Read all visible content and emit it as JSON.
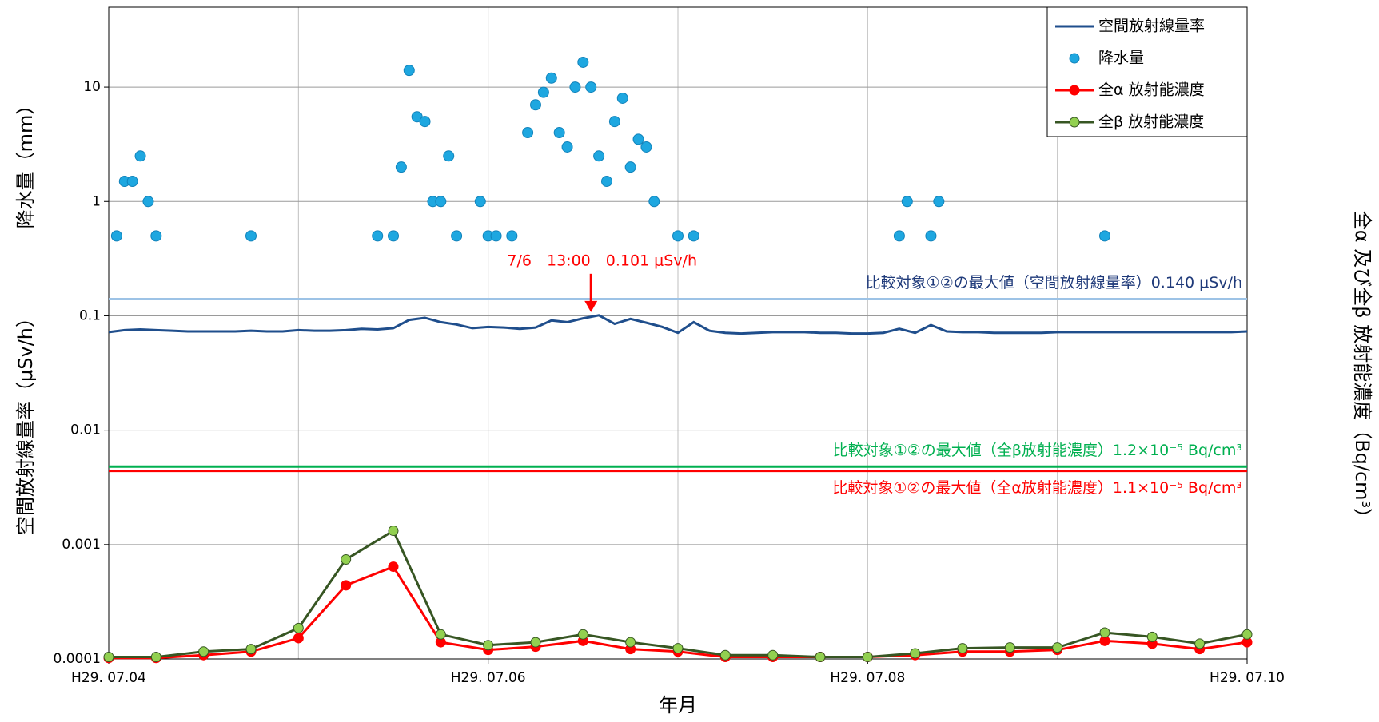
{
  "chart_data": {
    "type": "line",
    "x_label": "年月",
    "y_labels": [
      "降水量（mm）",
      "空間放射線量率（μSv/h）"
    ],
    "y2_label": "全α 及び全β 放射能濃度（Bq/cm³）",
    "xlim": [
      0,
      144
    ],
    "xticks": [
      {
        "value": 0,
        "label": "H29. 07.04"
      },
      {
        "value": 48,
        "label": "H29. 07.06"
      },
      {
        "value": 96,
        "label": "H29. 07.08"
      },
      {
        "value": 144,
        "label": "H29. 07.10"
      }
    ],
    "xgrid": [
      24,
      48,
      72,
      96,
      120
    ],
    "ylim": [
      0.0001,
      50
    ],
    "yticks": [
      0.0001,
      0.001,
      0.01,
      0.1,
      1,
      10
    ],
    "y2lim": [
      2.5e-07,
      0.125
    ],
    "log_scale": true,
    "grid": true,
    "legend": "top-right",
    "series": [
      {
        "name": "空間放射線量率",
        "type": "line",
        "color": "#1f4e8c",
        "x": [
          0,
          2,
          4,
          6,
          8,
          10,
          12,
          14,
          16,
          18,
          20,
          22,
          24,
          26,
          28,
          30,
          32,
          34,
          36,
          38,
          40,
          42,
          44,
          46,
          48,
          50,
          52,
          54,
          56,
          58,
          60,
          62,
          64,
          66,
          68,
          70,
          72,
          74,
          76,
          78,
          80,
          82,
          84,
          86,
          88,
          90,
          92,
          94,
          96,
          98,
          100,
          102,
          104,
          106,
          108,
          110,
          112,
          114,
          116,
          118,
          120,
          122,
          124,
          126,
          128,
          130,
          132,
          134,
          136,
          138,
          140,
          142,
          144
        ],
        "values": [
          0.072,
          0.075,
          0.076,
          0.075,
          0.074,
          0.073,
          0.073,
          0.073,
          0.073,
          0.074,
          0.073,
          0.073,
          0.075,
          0.074,
          0.074,
          0.075,
          0.077,
          0.076,
          0.078,
          0.092,
          0.096,
          0.088,
          0.084,
          0.078,
          0.08,
          0.079,
          0.077,
          0.079,
          0.091,
          0.088,
          0.095,
          0.101,
          0.085,
          0.094,
          0.087,
          0.08,
          0.071,
          0.088,
          0.074,
          0.071,
          0.07,
          0.071,
          0.072,
          0.072,
          0.072,
          0.071,
          0.071,
          0.07,
          0.07,
          0.071,
          0.077,
          0.071,
          0.083,
          0.073,
          0.072,
          0.072,
          0.071,
          0.071,
          0.071,
          0.071,
          0.072,
          0.072,
          0.072,
          0.072,
          0.072,
          0.072,
          0.072,
          0.072,
          0.072,
          0.072,
          0.072,
          0.072,
          0.073
        ]
      },
      {
        "name": "降水量",
        "type": "scatter",
        "color": "#1ea7e0",
        "x": [
          1,
          2,
          3,
          4,
          5,
          6,
          18,
          34,
          36,
          37,
          38,
          39,
          40,
          41,
          42,
          43,
          44,
          47,
          48,
          49,
          51,
          53,
          54,
          55,
          56,
          57,
          58,
          59,
          60,
          61,
          62,
          63,
          64,
          65,
          66,
          67,
          68,
          69,
          72,
          74,
          100,
          101,
          104,
          105,
          126
        ],
        "values": [
          0.5,
          1.5,
          1.5,
          2.5,
          1,
          0.5,
          0.5,
          0.5,
          0.5,
          2,
          14,
          5.5,
          5,
          1,
          1,
          2.5,
          0.5,
          1,
          0.5,
          0.5,
          0.5,
          4,
          7,
          9,
          12,
          4,
          3,
          10,
          16.5,
          10,
          2.5,
          1.5,
          5,
          8,
          2,
          3.5,
          3,
          1,
          0.5,
          0.5,
          0.5,
          1,
          0.5,
          1,
          0.5
        ]
      },
      {
        "name": "全α 放射能濃度",
        "type": "line-dot",
        "axis": "y2",
        "color": "#ff0000",
        "marker": "#ff0000",
        "x": [
          0,
          6,
          12,
          18,
          24,
          30,
          36,
          42,
          48,
          54,
          60,
          66,
          72,
          78,
          84,
          90,
          96,
          102,
          108,
          114,
          120,
          126,
          132,
          138,
          144
        ],
        "values": [
          2.55e-07,
          2.55e-07,
          2.7e-07,
          2.9e-07,
          3.8e-07,
          1.1e-06,
          1.6e-06,
          3.5e-07,
          3e-07,
          3.2e-07,
          3.6e-07,
          3.05e-07,
          2.9e-07,
          2.6e-07,
          2.6e-07,
          2.6e-07,
          2.6e-07,
          2.7e-07,
          2.9e-07,
          2.9e-07,
          3e-07,
          3.6e-07,
          3.4e-07,
          3.05e-07,
          3.5e-07
        ]
      },
      {
        "name": "全β 放射能濃度",
        "type": "line-dot",
        "axis": "y2",
        "color": "#375623",
        "marker": "#92d050",
        "x": [
          0,
          6,
          12,
          18,
          24,
          30,
          36,
          42,
          48,
          54,
          60,
          66,
          72,
          78,
          84,
          90,
          96,
          102,
          108,
          114,
          120,
          126,
          132,
          138,
          144
        ],
        "values": [
          2.6e-07,
          2.6e-07,
          2.9e-07,
          3.05e-07,
          4.65e-07,
          1.85e-06,
          3.3e-06,
          4.1e-07,
          3.3e-07,
          3.5e-07,
          4.1e-07,
          3.5e-07,
          3.1e-07,
          2.7e-07,
          2.7e-07,
          2.6e-07,
          2.6e-07,
          2.8e-07,
          3.1e-07,
          3.15e-07,
          3.15e-07,
          4.25e-07,
          3.9e-07,
          3.4e-07,
          4.1e-07
        ]
      }
    ],
    "reference_lines": [
      {
        "value": 0.14,
        "axis": "y",
        "color": "#9dc3e6",
        "text_color": "#1f3a7a",
        "label_side": "above",
        "label": "比較対象①②の最大値（空間放射線量率）0.140 μSv/h"
      },
      {
        "value": 1.2e-05,
        "axis": "y2",
        "color": "#00b050",
        "text_color": "#00b050",
        "label_side": "above",
        "label": "比較対象①②の最大値（全β放射能濃度）1.2×10⁻⁵ Bq/cm³"
      },
      {
        "value": 1.1e-05,
        "axis": "y2",
        "color": "#ff0000",
        "text_color": "#ff0000",
        "label_side": "below",
        "label": "比較対象①②の最大値（全α放射能濃度）1.1×10⁻⁵ Bq/cm³"
      }
    ],
    "annotation": {
      "text": "7/6　13:00　0.101 μSv/h",
      "x": 61,
      "y": 0.101,
      "color": "#ff0000"
    }
  }
}
